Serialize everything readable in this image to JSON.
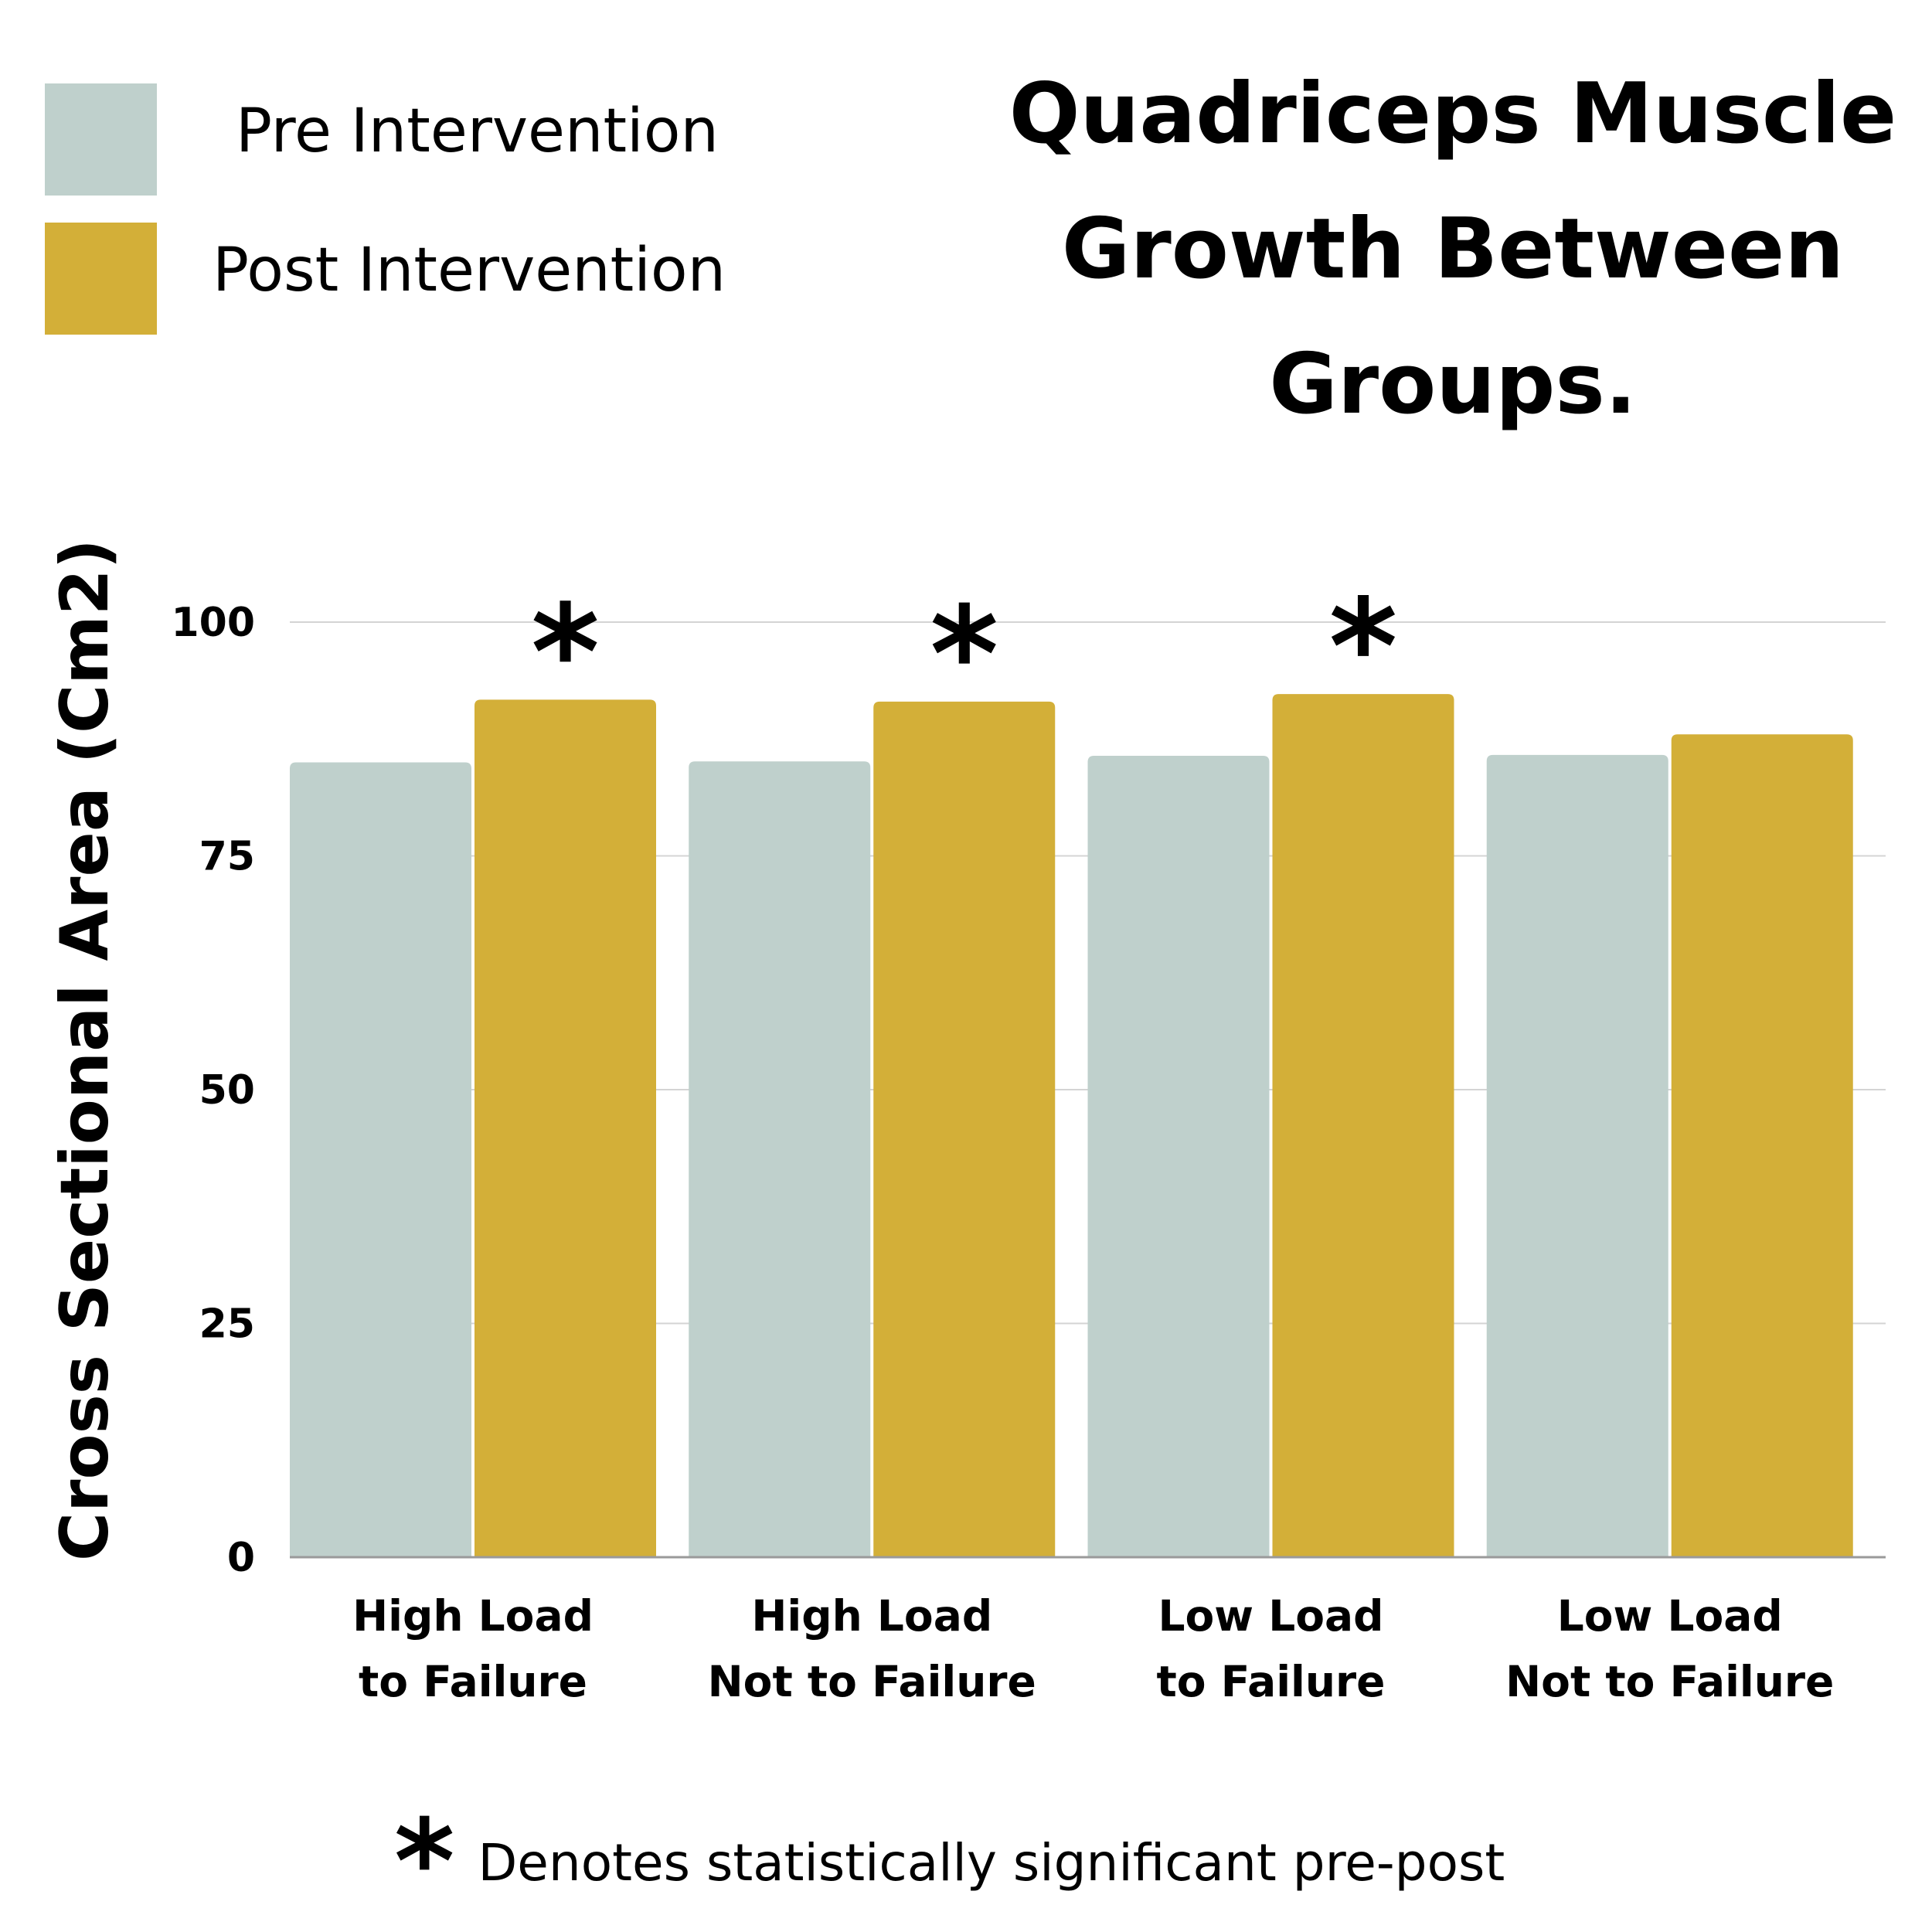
{
  "chart_data": {
    "type": "bar",
    "title": "Quadriceps Muscle Growth Between Groups.",
    "title_lines": [
      "Quadriceps Muscle",
      "Growth Between",
      "Groups."
    ],
    "ylabel": "Cross Sectional Area (Cm2)",
    "xlabel": "",
    "ylim": [
      0,
      100
    ],
    "yticks": [
      "0",
      "25",
      "50",
      "75",
      "100"
    ],
    "grid": true,
    "legend_position": "top-left",
    "categories": [
      [
        "High Load",
        "to Failure"
      ],
      [
        "High Load",
        "Not to Failure"
      ],
      [
        "Low Load",
        "to Failure"
      ],
      [
        "Low Load",
        "Not to Failure"
      ]
    ],
    "series": [
      {
        "name": "Pre Intervention",
        "color": "#bfd0cc",
        "values": [
          85,
          85.1,
          85.7,
          85.8
        ]
      },
      {
        "name": "Post Intervention",
        "color": "#d3af38",
        "values": [
          91.7,
          91.5,
          92.3,
          88
        ]
      }
    ],
    "significant": [
      true,
      true,
      true,
      false
    ],
    "significance_marker": "*",
    "footnote": "Denotes statistically significant pre-post"
  }
}
